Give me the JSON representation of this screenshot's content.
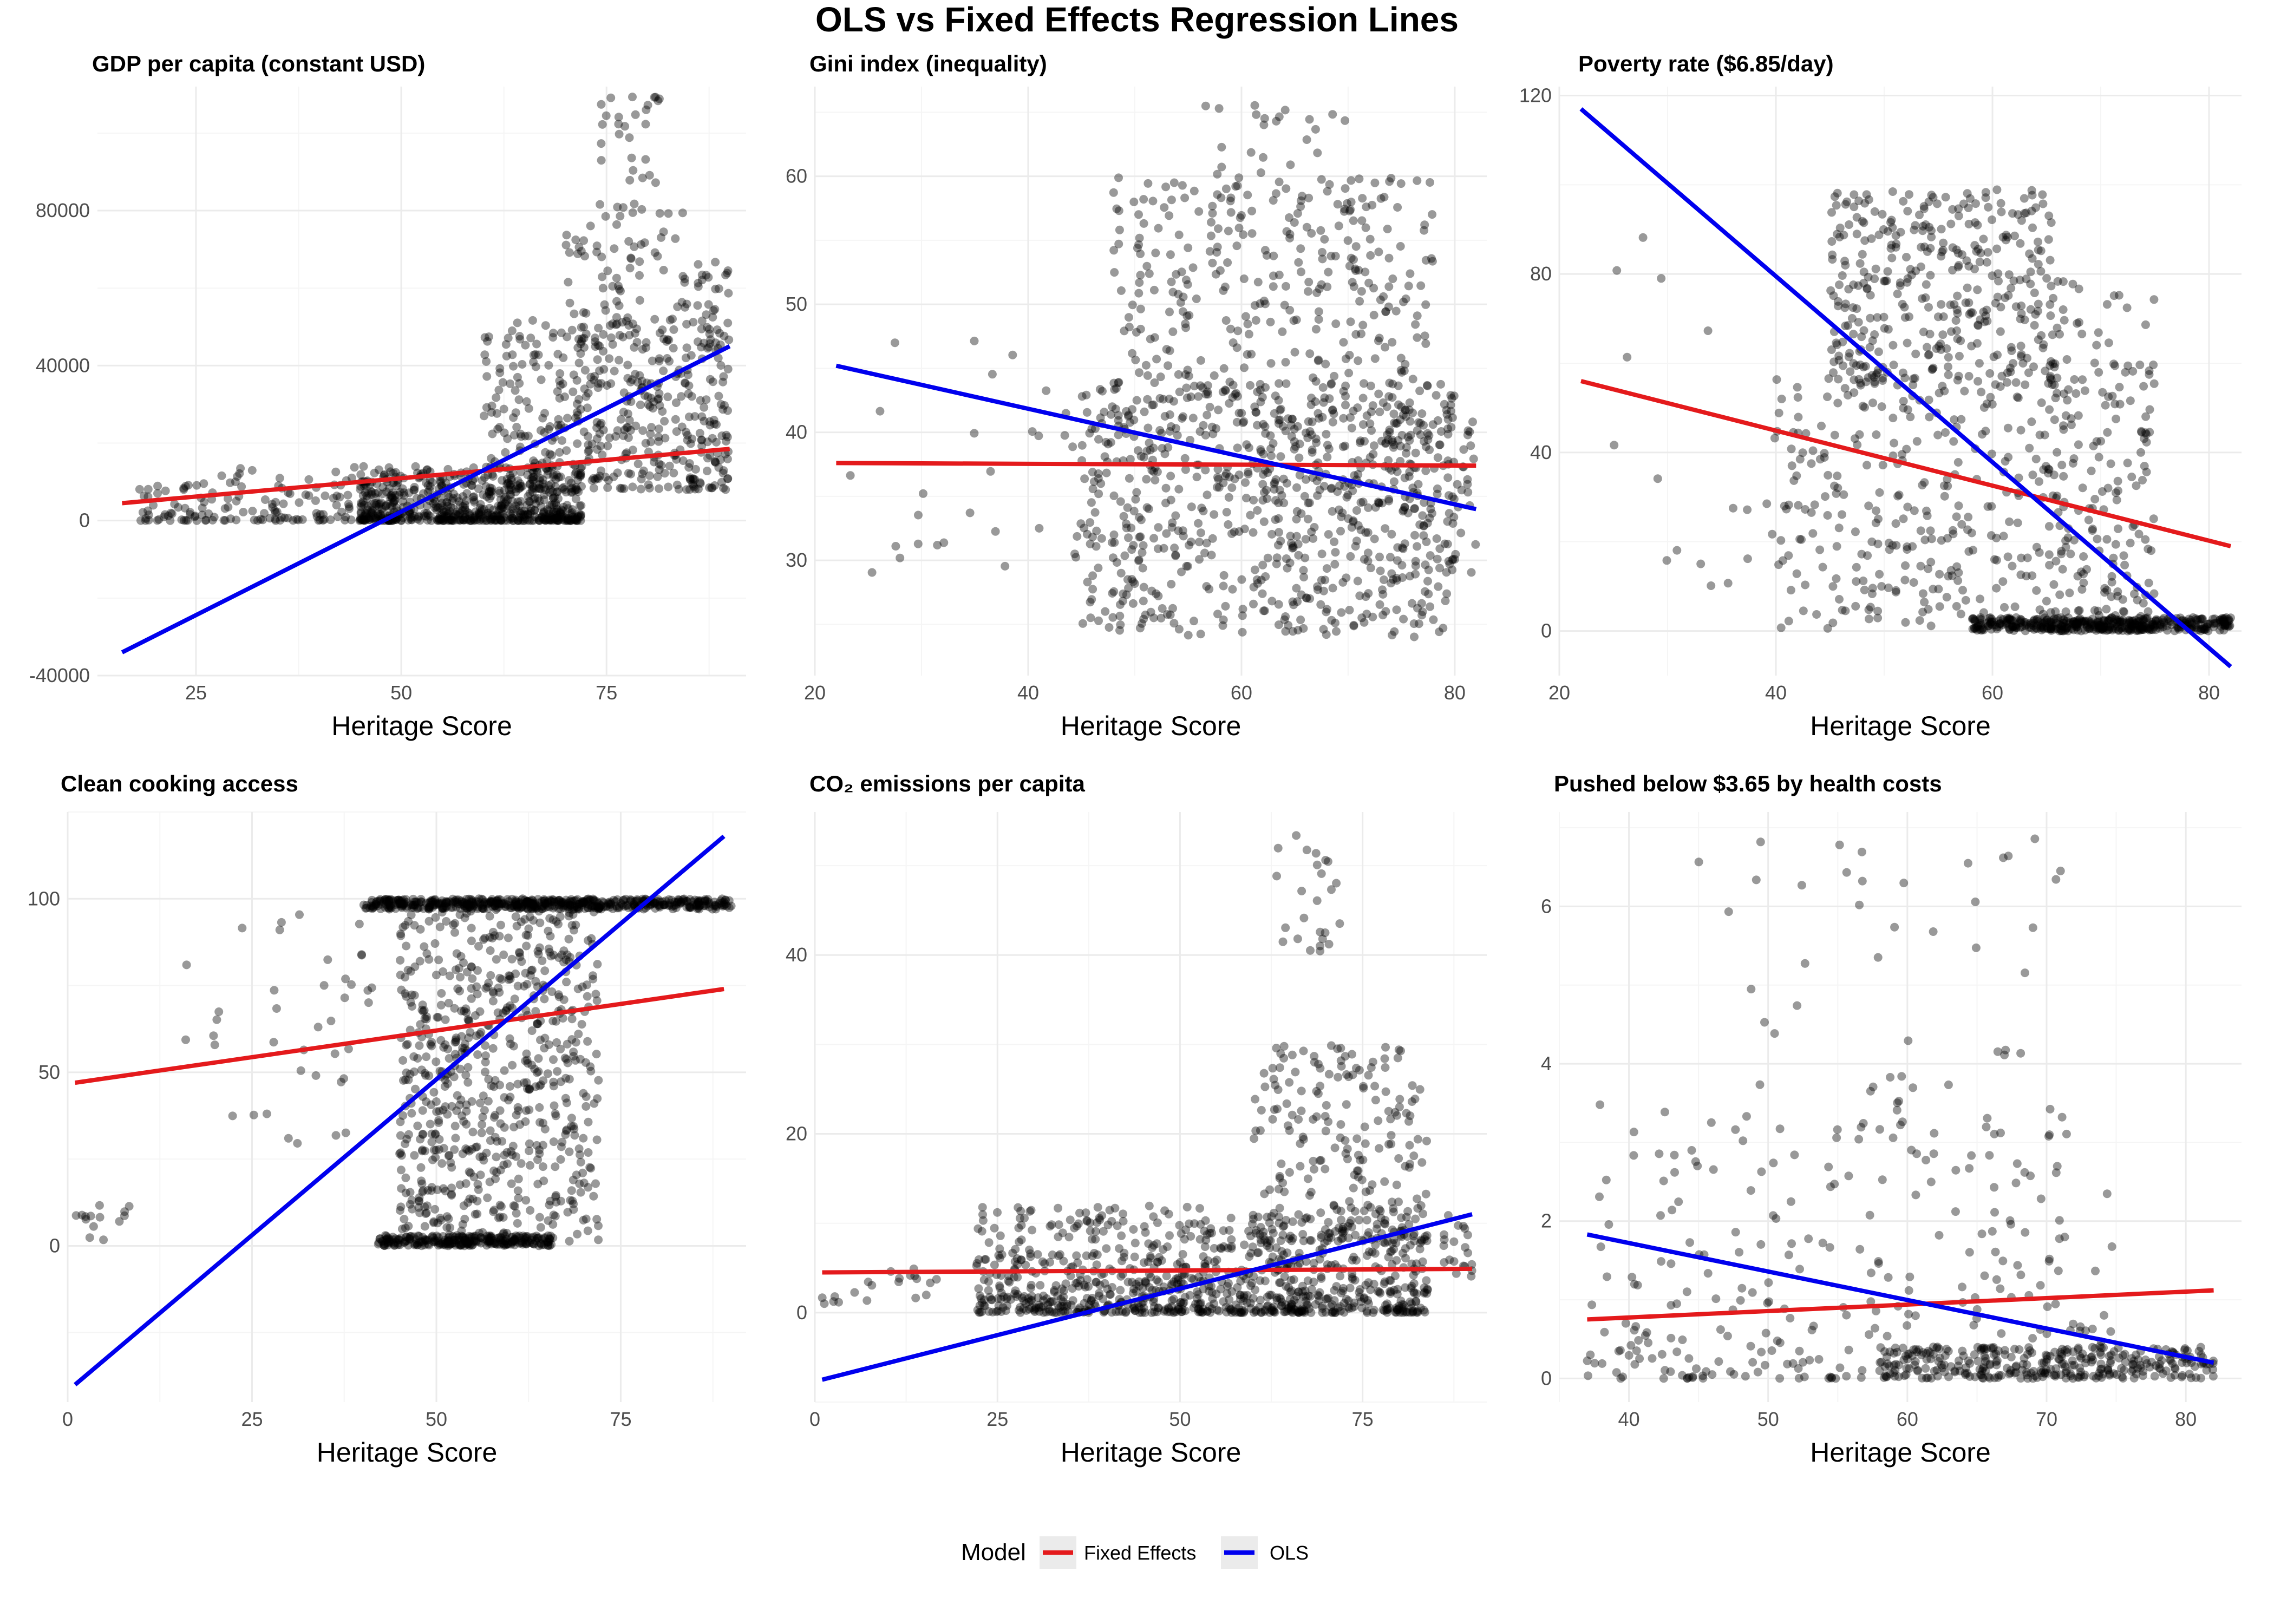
{
  "figure": {
    "title": "OLS vs Fixed Effects Regression Lines",
    "legend": {
      "title": "Model",
      "position": "bottom",
      "entries": [
        {
          "label": "Fixed Effects",
          "color": "#e41a1c"
        },
        {
          "label": "OLS",
          "color": "#0000ee"
        }
      ]
    }
  },
  "colors": {
    "points": "#000000",
    "points_opacity": 0.4,
    "grid_major": "#ebebeb",
    "grid_minor": "#f5f5f5",
    "ols": "#0000ee",
    "fe": "#e41a1c"
  },
  "chart_data": [
    {
      "type": "scatter",
      "title": "GDP per capita (constant USD)",
      "xlabel": "Heritage Score",
      "ylabel": "",
      "xlim": [
        13,
        92
      ],
      "ylim": [
        -40000,
        112000
      ],
      "xticks": [
        25,
        50,
        75
      ],
      "yticks": [
        -40000,
        0,
        40000,
        80000
      ],
      "ytick_labels": [
        "-40000",
        "0",
        "40000",
        "80000"
      ],
      "grid": true,
      "lines": [
        {
          "name": "Fixed Effects",
          "x": [
            16,
            90
          ],
          "y": [
            4500,
            18500
          ]
        },
        {
          "name": "OLS",
          "x": [
            16,
            90
          ],
          "y": [
            -34000,
            45000
          ]
        }
      ],
      "clusters": [
        {
          "n": 150,
          "x": [
            18,
            48
          ],
          "y": [
            0,
            14000
          ],
          "yskew": 2.2
        },
        {
          "n": 650,
          "x": [
            45,
            72
          ],
          "y": [
            0,
            14000
          ],
          "yskew": 2.5
        },
        {
          "n": 420,
          "x": [
            60,
            90
          ],
          "y": [
            8000,
            52000
          ],
          "yskew": 1.4
        },
        {
          "n": 110,
          "x": [
            70,
            85
          ],
          "y": [
            30000,
            80000
          ],
          "yskew": 1.0
        },
        {
          "n": 35,
          "x": [
            74,
            82
          ],
          "y": [
            78000,
            112000
          ],
          "yskew": 1.0
        },
        {
          "n": 40,
          "x": [
            86,
            90
          ],
          "y": [
            20000,
            68000
          ],
          "yskew": 1.0
        }
      ]
    },
    {
      "type": "scatter",
      "title": "Gini index (inequality)",
      "xlabel": "Heritage Score",
      "ylabel": "",
      "xlim": [
        20,
        83
      ],
      "ylim": [
        21,
        67
      ],
      "xticks": [
        20,
        40,
        60,
        80
      ],
      "yticks": [
        30,
        40,
        50,
        60
      ],
      "ytick_labels": [
        "30",
        "40",
        "50",
        "60"
      ],
      "grid": true,
      "lines": [
        {
          "name": "Fixed Effects",
          "x": [
            22,
            82
          ],
          "y": [
            37.6,
            37.4
          ]
        },
        {
          "name": "OLS",
          "x": [
            22,
            82
          ],
          "y": [
            45.2,
            34.0
          ]
        }
      ],
      "clusters": [
        {
          "n": 30,
          "x": [
            22,
            45
          ],
          "y": [
            28,
            48
          ],
          "yskew": 1.0
        },
        {
          "n": 700,
          "x": [
            45,
            80
          ],
          "y": [
            24,
            44
          ],
          "yskew": 1.0
        },
        {
          "n": 350,
          "x": [
            48,
            78
          ],
          "y": [
            40,
            60
          ],
          "yskew": 1.0
        },
        {
          "n": 25,
          "x": [
            55,
            70
          ],
          "y": [
            58,
            66
          ],
          "yskew": 1.0
        },
        {
          "n": 60,
          "x": [
            75,
            82
          ],
          "y": [
            28,
            42
          ],
          "yskew": 1.0
        }
      ]
    },
    {
      "type": "scatter",
      "title": "Poverty rate ($6.85/day)",
      "xlabel": "Heritage Score",
      "ylabel": "",
      "xlim": [
        20,
        83
      ],
      "ylim": [
        -10,
        122
      ],
      "xticks": [
        20,
        40,
        60,
        80
      ],
      "yticks": [
        0,
        40,
        80,
        120
      ],
      "ytick_labels": [
        "0",
        "40",
        "80",
        "120"
      ],
      "grid": true,
      "lines": [
        {
          "name": "Fixed Effects",
          "x": [
            22,
            82
          ],
          "y": [
            56,
            19
          ]
        },
        {
          "name": "OLS",
          "x": [
            22,
            82
          ],
          "y": [
            117,
            -8
          ]
        }
      ],
      "clusters": [
        {
          "n": 18,
          "x": [
            22,
            40
          ],
          "y": [
            10,
            99
          ],
          "yskew": 1.0
        },
        {
          "n": 350,
          "x": [
            45,
            66
          ],
          "y": [
            55,
            99
          ],
          "yskew": 1.0
        },
        {
          "n": 380,
          "x": [
            40,
            75
          ],
          "y": [
            0,
            60
          ],
          "yskew": 1.0
        },
        {
          "n": 420,
          "x": [
            58,
            82
          ],
          "y": [
            0,
            3
          ],
          "yskew": 1.0
        },
        {
          "n": 120,
          "x": [
            65,
            75
          ],
          "y": [
            0,
            80
          ],
          "yskew": 1.8
        }
      ]
    },
    {
      "type": "scatter",
      "title": "Clean cooking access",
      "xlabel": "Heritage Score",
      "ylabel": "",
      "xlim": [
        0,
        92
      ],
      "ylim": [
        -45,
        125
      ],
      "xticks": [
        0,
        25,
        50,
        75
      ],
      "yticks": [
        0,
        50,
        100
      ],
      "ytick_labels": [
        "0",
        "50",
        "100"
      ],
      "grid": true,
      "lines": [
        {
          "name": "Fixed Effects",
          "x": [
            1,
            89
          ],
          "y": [
            47,
            74
          ]
        },
        {
          "name": "OLS",
          "x": [
            1,
            89
          ],
          "y": [
            -40,
            118
          ]
        }
      ],
      "clusters": [
        {
          "n": 14,
          "x": [
            1,
            9
          ],
          "y": [
            1,
            15
          ],
          "yskew": 1.0
        },
        {
          "n": 40,
          "x": [
            15,
            42
          ],
          "y": [
            25,
            98
          ],
          "yskew": 1.0
        },
        {
          "n": 550,
          "x": [
            40,
            90
          ],
          "y": [
            97,
            100
          ],
          "yskew": 1.0
        },
        {
          "n": 700,
          "x": [
            45,
            72
          ],
          "y": [
            0,
            100
          ],
          "yskew": 1.0
        },
        {
          "n": 250,
          "x": [
            42,
            66
          ],
          "y": [
            0,
            3
          ],
          "yskew": 1.0
        }
      ]
    },
    {
      "type": "scatter",
      "title": "CO₂ emissions per capita",
      "xlabel": "Heritage Score",
      "ylabel": "",
      "xlim": [
        0,
        92
      ],
      "ylim": [
        -10,
        56
      ],
      "xticks": [
        0,
        25,
        50,
        75
      ],
      "yticks": [
        0,
        20,
        40
      ],
      "ytick_labels": [
        "0",
        "20",
        "40"
      ],
      "grid": true,
      "lines": [
        {
          "name": "Fixed Effects",
          "x": [
            1,
            90
          ],
          "y": [
            4.5,
            4.9
          ]
        },
        {
          "name": "OLS",
          "x": [
            1,
            90
          ],
          "y": [
            -7.5,
            11
          ]
        }
      ],
      "clusters": [
        {
          "n": 20,
          "x": [
            1,
            18
          ],
          "y": [
            1,
            5
          ],
          "yskew": 1.0
        },
        {
          "n": 900,
          "x": [
            22,
            84
          ],
          "y": [
            0,
            12
          ],
          "yskew": 2.0
        },
        {
          "n": 220,
          "x": [
            60,
            84
          ],
          "y": [
            8,
            30
          ],
          "yskew": 1.6
        },
        {
          "n": 25,
          "x": [
            63,
            72
          ],
          "y": [
            40,
            54
          ],
          "yskew": 1.0
        },
        {
          "n": 20,
          "x": [
            86,
            90
          ],
          "y": [
            4,
            11
          ],
          "yskew": 1.0
        }
      ]
    },
    {
      "type": "scatter",
      "title": "Pushed below $3.65 by health costs",
      "xlabel": "Heritage Score",
      "ylabel": "",
      "xlim": [
        35,
        84
      ],
      "ylim": [
        -0.3,
        7.2
      ],
      "xticks": [
        40,
        50,
        60,
        70,
        80
      ],
      "yticks": [
        0,
        2,
        4,
        6
      ],
      "ytick_labels": [
        "0",
        "2",
        "4",
        "6"
      ],
      "grid": true,
      "lines": [
        {
          "name": "Fixed Effects",
          "x": [
            37,
            82
          ],
          "y": [
            0.75,
            1.12
          ]
        },
        {
          "name": "OLS",
          "x": [
            37,
            82
          ],
          "y": [
            1.83,
            0.2
          ]
        }
      ],
      "clusters": [
        {
          "n": 300,
          "x": [
            37,
            75
          ],
          "y": [
            0,
            3.5
          ],
          "yskew": 2.2
        },
        {
          "n": 50,
          "x": [
            45,
            72
          ],
          "y": [
            3,
            6.9
          ],
          "yskew": 1.0
        },
        {
          "n": 280,
          "x": [
            58,
            82
          ],
          "y": [
            0,
            0.4
          ],
          "yskew": 1.0
        }
      ]
    }
  ]
}
